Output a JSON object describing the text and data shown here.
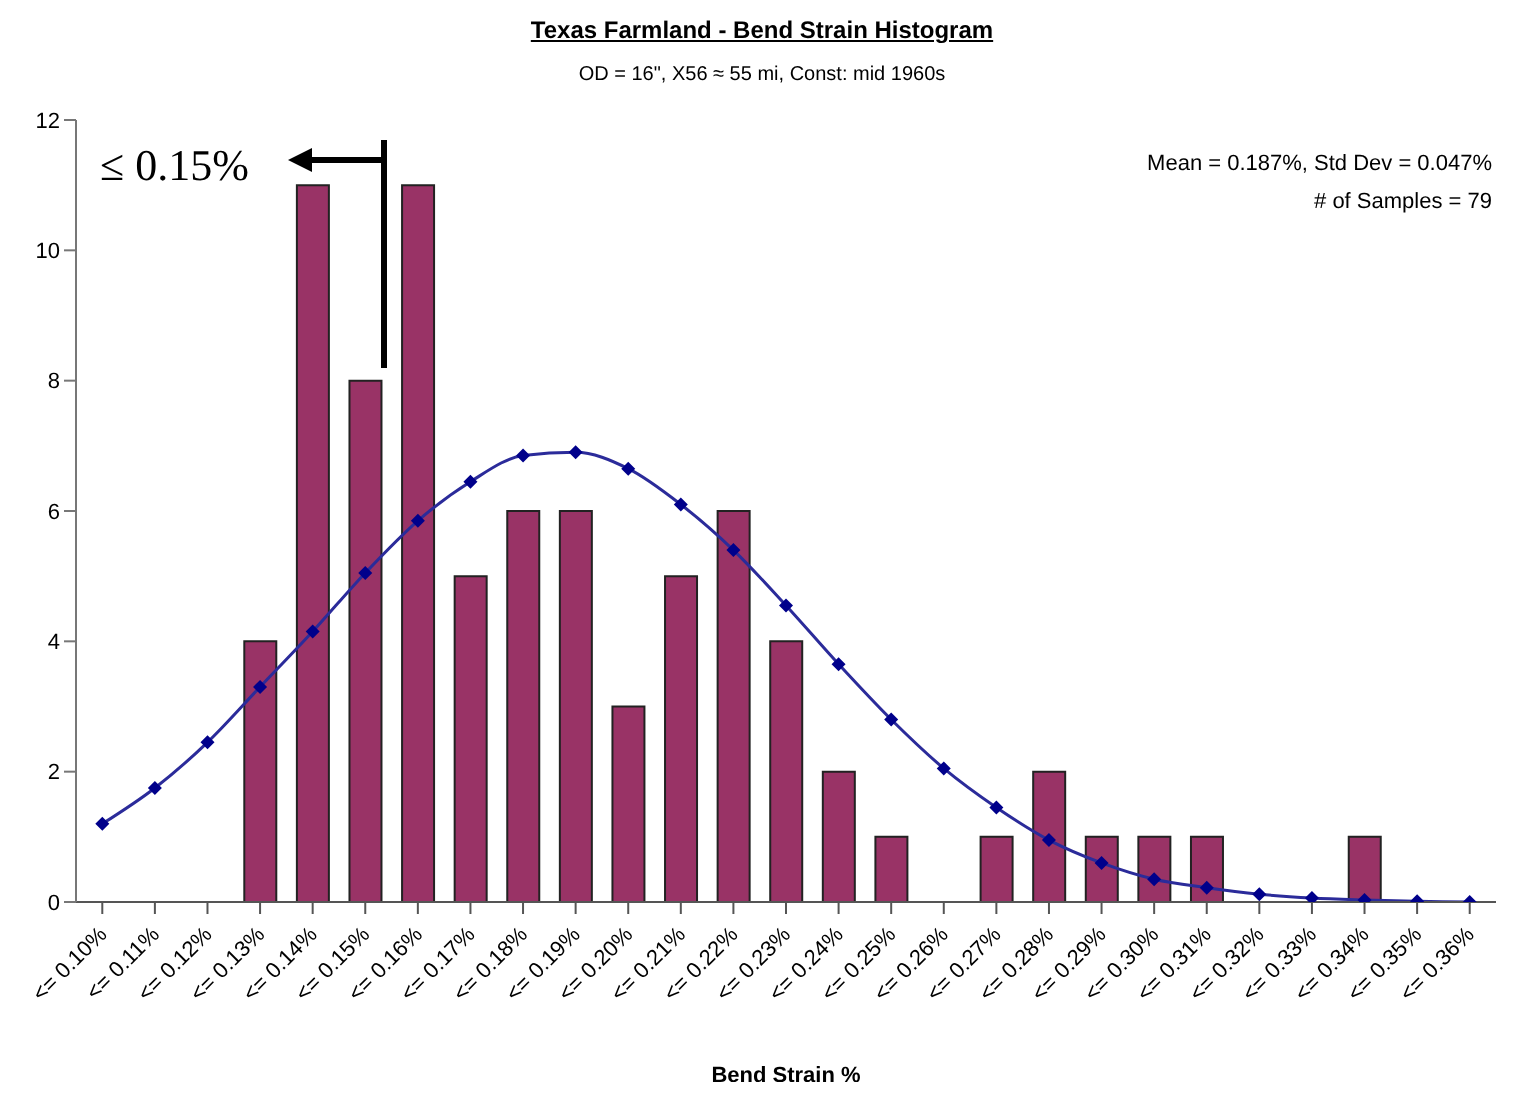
{
  "chart_data": {
    "type": "bar",
    "title": "Texas Farmland - Bend Strain Histogram",
    "subtitle": "OD = 16\", X56 ≈ 55 mi, Const: mid 1960s",
    "xlabel": "Bend Strain %",
    "categories": [
      "<= 0.10%",
      "<= 0.11%",
      "<= 0.12%",
      "<= 0.13%",
      "<= 0.14%",
      "<= 0.15%",
      "<= 0.16%",
      "<= 0.17%",
      "<= 0.18%",
      "<= 0.19%",
      "<= 0.20%",
      "<= 0.21%",
      "<= 0.22%",
      "<= 0.23%",
      "<= 0.24%",
      "<= 0.25%",
      "<= 0.26%",
      "<= 0.27%",
      "<= 0.28%",
      "<= 0.29%",
      "<= 0.30%",
      "<= 0.31%",
      "<= 0.32%",
      "<= 0.33%",
      "<= 0.34%",
      "<= 0.35%",
      "<= 0.36%"
    ],
    "series": [
      {
        "color": "#993366",
        "values": [
          0,
          0,
          0,
          4,
          11,
          8,
          11,
          5,
          6,
          6,
          3,
          5,
          6,
          4,
          2,
          1,
          0,
          1,
          2,
          1,
          1,
          1,
          0,
          0,
          1,
          0,
          0
        ]
      },
      {
        "type": "line",
        "color": "#2b2b9a",
        "marker": "diamond",
        "values": [
          1.2,
          1.75,
          2.45,
          3.3,
          4.15,
          5.05,
          5.85,
          6.45,
          6.85,
          6.9,
          6.65,
          6.1,
          5.4,
          4.55,
          3.65,
          2.8,
          2.05,
          1.45,
          0.95,
          0.6,
          0.35,
          0.22,
          0.12,
          0.06,
          0.03,
          0.01,
          0
        ]
      }
    ],
    "ylim": [
      0,
      12
    ],
    "yticks": [
      0,
      2,
      4,
      6,
      8,
      10,
      12
    ],
    "grid": false,
    "legend": false,
    "annotations": [
      "≤ 0.15%",
      "Mean = 0.187%, Std Dev = 0.047%",
      "# of Samples = 79"
    ]
  }
}
